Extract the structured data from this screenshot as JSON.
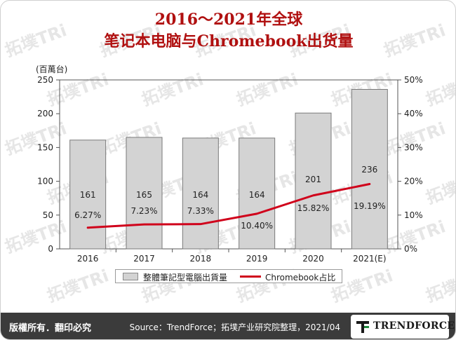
{
  "title": {
    "line1": "2016～2021年全球",
    "line2": "笔记本电脑与Chromebook出货量"
  },
  "watermark": {
    "text": "拓墣TRi",
    "color": "#e6e6e6"
  },
  "chart_data": {
    "type": "bar",
    "categories": [
      "2016",
      "2017",
      "2018",
      "2019",
      "2020",
      "2021(E)"
    ],
    "series": [
      {
        "name": "整體筆記型電腦出貨量",
        "kind": "bar",
        "axis": "left",
        "values": [
          161,
          165,
          164,
          164,
          201,
          236
        ],
        "labels": [
          "161",
          "165",
          "164",
          "164",
          "201",
          "236"
        ],
        "color": "#d3d3d3"
      },
      {
        "name": "Chromebook占比",
        "kind": "line",
        "axis": "right",
        "values": [
          6.27,
          7.23,
          7.33,
          10.4,
          15.82,
          19.19
        ],
        "labels": [
          "6.27%",
          "7.23%",
          "7.33%",
          "10.40%",
          "15.82%",
          "19.19%"
        ],
        "color": "#d0021b"
      }
    ],
    "y_left": {
      "unit": "(百萬台)",
      "ylim": [
        0,
        250
      ],
      "ticks": [
        "0",
        "50",
        "100",
        "150",
        "200",
        "250"
      ]
    },
    "y_right": {
      "ylim": [
        0,
        50
      ],
      "ticks": [
        "0%",
        "10%",
        "20%",
        "30%",
        "40%",
        "50%"
      ]
    },
    "grid": false,
    "legend": "bottom"
  },
  "footer": {
    "rights": "版權所有．翻印必究",
    "source": "Source：TrendForce；拓墣产业研究院整理，2021/04",
    "logo": "TRENDFORCE"
  }
}
